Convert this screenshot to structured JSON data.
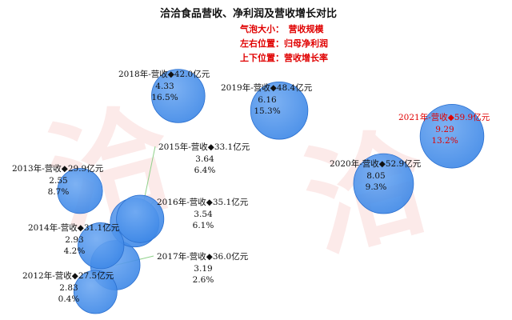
{
  "title": "洽洽食品营收、净利润及营收增长对比",
  "legend": {
    "size_label": "气泡大小：　营收规模",
    "x_label": "左右位置：归母净利润",
    "y_label": "上下位置：营收增长率"
  },
  "colors": {
    "bubble": "#3b86e6",
    "bubble_edge": "#2a6fcf",
    "highlight_text": "#e00000",
    "watermark": "#e53935",
    "leader": "#8fd18a"
  },
  "chart_data": {
    "type": "scatter",
    "title": "洽洽食品营收、净利润及营收增长对比",
    "x_field": "归母净利润(亿元)",
    "y_field": "营收增长率(%)",
    "size_field": "营收(亿元)",
    "points": [
      {
        "year": "2012",
        "label": "2012年-营收◆27.5亿元",
        "revenue": 27.5,
        "profit": 2.83,
        "growth": 0.4,
        "profit_text": "2.83",
        "growth_text": "0.4%"
      },
      {
        "year": "2013",
        "label": "2013年-营收◆29.9亿元",
        "revenue": 29.9,
        "profit": 2.55,
        "growth": 8.7,
        "profit_text": "2.55",
        "growth_text": "8.7%"
      },
      {
        "year": "2014",
        "label": "2014年-营收◆31.1亿元",
        "revenue": 31.1,
        "profit": 2.93,
        "growth": 4.2,
        "profit_text": "2.93",
        "growth_text": "4.2%"
      },
      {
        "year": "2015",
        "label": "2015年-营收◆33.1亿元",
        "revenue": 33.1,
        "profit": 3.64,
        "growth": 6.4,
        "profit_text": "3.64",
        "growth_text": "6.4%"
      },
      {
        "year": "2016",
        "label": "2016年-营收◆35.1亿元",
        "revenue": 35.1,
        "profit": 3.54,
        "growth": 6.1,
        "profit_text": "3.54",
        "growth_text": "6.1%"
      },
      {
        "year": "2017",
        "label": "2017年-营收◆36.0亿元",
        "revenue": 36.0,
        "profit": 3.19,
        "growth": 2.6,
        "profit_text": "3.19",
        "growth_text": "2.6%"
      },
      {
        "year": "2018",
        "label": "2018年-营收◆42.0亿元",
        "revenue": 42.0,
        "profit": 4.33,
        "growth": 16.5,
        "profit_text": "4.33",
        "growth_text": "16.5%"
      },
      {
        "year": "2019",
        "label": "2019年-营收◆48.4亿元",
        "revenue": 48.4,
        "profit": 6.16,
        "growth": 15.3,
        "profit_text": "6.16",
        "growth_text": "15.3%"
      },
      {
        "year": "2020",
        "label": "2020年-营收◆52.9亿元",
        "revenue": 52.9,
        "profit": 8.05,
        "growth": 9.3,
        "profit_text": "8.05",
        "growth_text": "9.3%"
      },
      {
        "year": "2021",
        "label": "2021年-营收◆59.9亿元",
        "revenue": 59.9,
        "profit": 9.29,
        "growth": 13.2,
        "profit_text": "9.29",
        "growth_text": "13.2%",
        "highlight": true
      }
    ]
  }
}
